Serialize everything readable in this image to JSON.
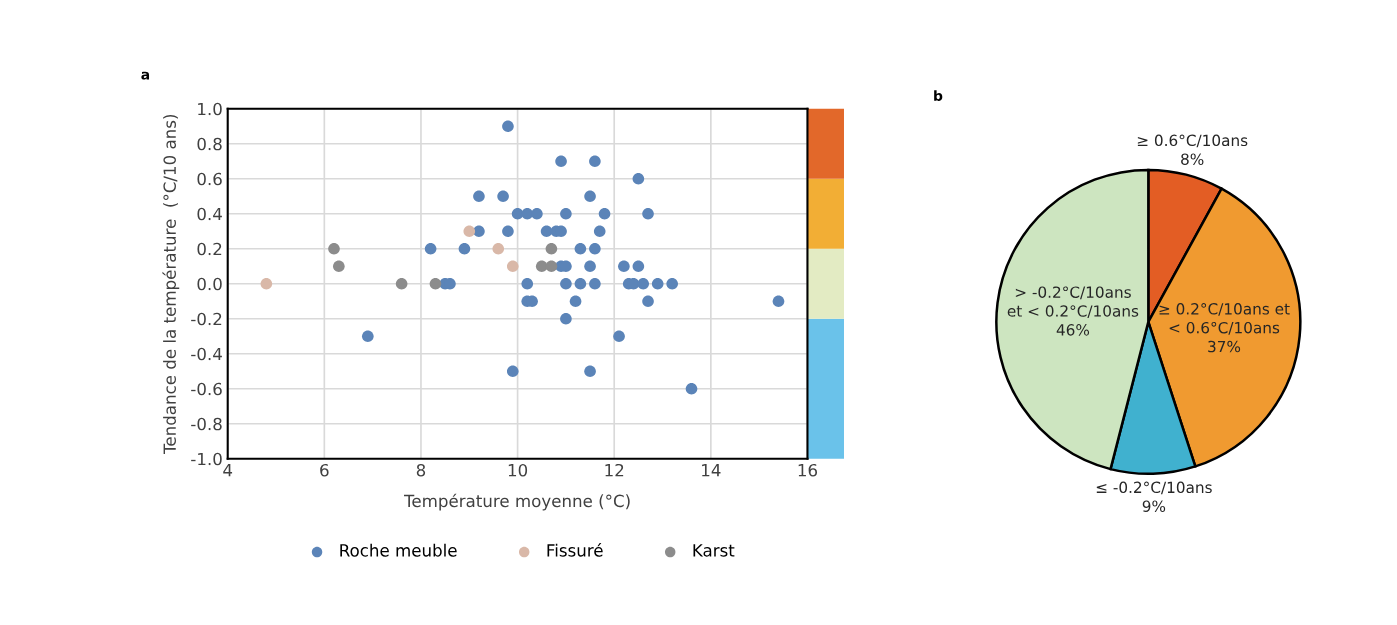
{
  "chart_data": [
    {
      "type": "scatter",
      "title": "a",
      "xlabel": "Température moyenne (°C)",
      "ylabel": "Tendance de la température  (°C/10 ans)",
      "xlim": [
        4,
        16
      ],
      "xticks": [
        4,
        6,
        8,
        10,
        12,
        14,
        16
      ],
      "ylim": [
        -1.0,
        1.0
      ],
      "yticks": [
        {
          "value": -1.0,
          "label": "-1.0"
        },
        {
          "value": -0.8,
          "label": "-0.8"
        },
        {
          "value": -0.6,
          "label": "-0.6"
        },
        {
          "value": -0.4,
          "label": "-0.4"
        },
        {
          "value": -0.2,
          "label": "-0.2"
        },
        {
          "value": 0.0,
          "label": "0.0"
        },
        {
          "value": 0.2,
          "label": "0.2"
        },
        {
          "value": 0.4,
          "label": "0.4"
        },
        {
          "value": 0.6,
          "label": "0.6"
        },
        {
          "value": 0.8,
          "label": "0.8"
        },
        {
          "value": 1.0,
          "label": "1.0"
        }
      ],
      "grid": true,
      "legend": "bottom",
      "marker": "circle",
      "series": [
        {
          "name": "Roche meuble",
          "color": "#5b84b8",
          "x": [
            9.8,
            10.9,
            11.6,
            12.5,
            9.2,
            9.7,
            11.5,
            10.0,
            10.2,
            10.4,
            11.0,
            11.8,
            12.7,
            9.2,
            9.8,
            10.6,
            10.8,
            10.9,
            11.7,
            8.2,
            8.9,
            11.3,
            11.6,
            10.9,
            11.0,
            11.5,
            12.2,
            12.5,
            8.5,
            8.6,
            10.2,
            11.0,
            11.3,
            11.6,
            12.3,
            12.4,
            12.6,
            12.9,
            13.2,
            10.2,
            10.3,
            11.2,
            12.7,
            15.4,
            11.0,
            6.9,
            12.1,
            9.9,
            11.5,
            13.6
          ],
          "values": [
            0.9,
            0.7,
            0.7,
            0.6,
            0.5,
            0.5,
            0.5,
            0.4,
            0.4,
            0.4,
            0.4,
            0.4,
            0.4,
            0.3,
            0.3,
            0.3,
            0.3,
            0.3,
            0.3,
            0.2,
            0.2,
            0.2,
            0.2,
            0.1,
            0.1,
            0.1,
            0.1,
            0.1,
            0.0,
            0.0,
            0.0,
            0.0,
            0.0,
            0.0,
            0.0,
            0.0,
            0.0,
            0.0,
            0.0,
            -0.1,
            -0.1,
            -0.1,
            -0.1,
            -0.1,
            -0.2,
            -0.3,
            -0.3,
            -0.5,
            -0.5,
            -0.6
          ]
        },
        {
          "name": "Fissuré",
          "color": "#d9b8a8",
          "x": [
            4.8,
            9.0,
            9.6,
            9.9
          ],
          "values": [
            0.0,
            0.3,
            0.2,
            0.1
          ]
        },
        {
          "name": "Karst",
          "color": "#8c8c8c",
          "x": [
            6.2,
            6.3,
            7.6,
            8.3,
            10.5,
            10.7,
            10.7
          ],
          "values": [
            0.2,
            0.1,
            0.0,
            0.0,
            0.1,
            0.1,
            0.2
          ]
        }
      ]
    },
    {
      "type": "pie",
      "title": "b",
      "categories": [
        "≥ 0.6°C/10ans",
        "≥ 0.2°C/10ans et\n< 0.6°C/10ans",
        "≤ -0.2°C/10ans",
        "> -0.2°C/10ans\net < 0.2°C/10ans"
      ],
      "values": [
        8,
        37,
        9,
        46
      ],
      "value_labels": [
        "8%",
        "37%",
        "9%",
        "46%"
      ],
      "colors": [
        "#e35d24",
        "#f09a30",
        "#40b1cf",
        "#cde5c0"
      ]
    }
  ]
}
